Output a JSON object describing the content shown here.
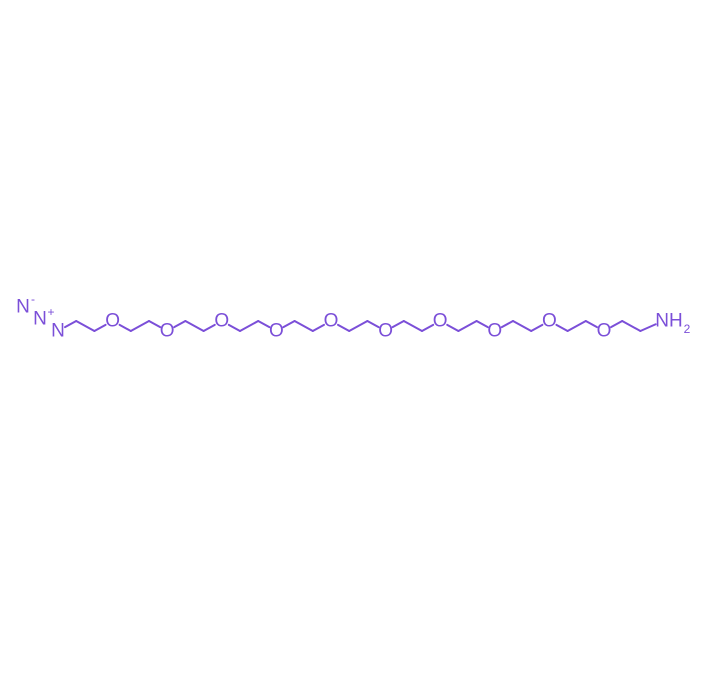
{
  "molecule": {
    "color": "#7b4fd8",
    "azide": {
      "n1": "N",
      "n1_charge": "-",
      "n2": "N",
      "n2_charge": "+",
      "n3": "N"
    },
    "oxygen_label": "O",
    "oxygen_count": 10,
    "amine": {
      "n": "NH",
      "sub": "2"
    }
  }
}
